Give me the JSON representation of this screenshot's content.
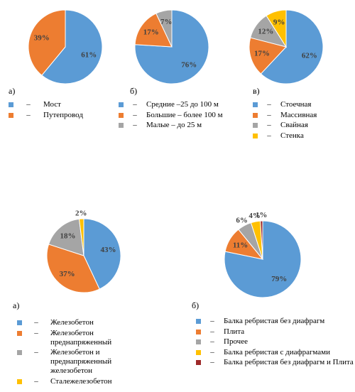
{
  "chart_data": [
    {
      "type": "pie",
      "label": "а)",
      "legend_marker": "–",
      "categories": [
        "Мост",
        "Путепровод"
      ],
      "values": [
        61,
        39
      ],
      "value_labels": [
        "61%",
        "39%"
      ],
      "colors": [
        "#5b9bd5",
        "#ed7d31"
      ]
    },
    {
      "type": "pie",
      "label": "б)",
      "legend_marker": "–",
      "categories": [
        "Средние –25 до 100 м",
        "Большие – более 100 м",
        "Малые – до 25 м"
      ],
      "values": [
        76,
        17,
        7
      ],
      "value_labels": [
        "76%",
        "17%",
        "7%"
      ],
      "colors": [
        "#5b9bd5",
        "#ed7d31",
        "#a5a5a5"
      ]
    },
    {
      "type": "pie",
      "label": "в)",
      "legend_marker": "–",
      "categories": [
        "Стоечная",
        "Массивная",
        "Свайная",
        "Стенка"
      ],
      "values": [
        62,
        17,
        12,
        9
      ],
      "value_labels": [
        "62%",
        "17%",
        "12%",
        "9%"
      ],
      "colors": [
        "#5b9bd5",
        "#ed7d31",
        "#a5a5a5",
        "#ffc000"
      ]
    },
    {
      "type": "pie",
      "label": "а)",
      "legend_marker": "–",
      "categories": [
        "Железобетон",
        "Железобетон преднапряженный",
        "Железобетон и преднапряженный железобетон",
        "Сталежелезобетон"
      ],
      "values": [
        43,
        37,
        18,
        2
      ],
      "value_labels": [
        "43%",
        "37%",
        "18%",
        "2%"
      ],
      "colors": [
        "#5b9bd5",
        "#ed7d31",
        "#a5a5a5",
        "#ffc000"
      ]
    },
    {
      "type": "pie",
      "label": "б)",
      "legend_marker": "–",
      "categories": [
        "Балка ребристая без диафрагм",
        "Плита",
        "Прочее",
        "Балка ребристая с диафрагмами",
        "Балка ребристая без диафрагм и Плита"
      ],
      "values": [
        79,
        11,
        6,
        4,
        1
      ],
      "value_labels": [
        "79%",
        "11%",
        "6%",
        "4%",
        "1%"
      ],
      "colors": [
        "#5b9bd5",
        "#ed7d31",
        "#a5a5a5",
        "#ffc000",
        "#9e2a2a"
      ]
    }
  ]
}
